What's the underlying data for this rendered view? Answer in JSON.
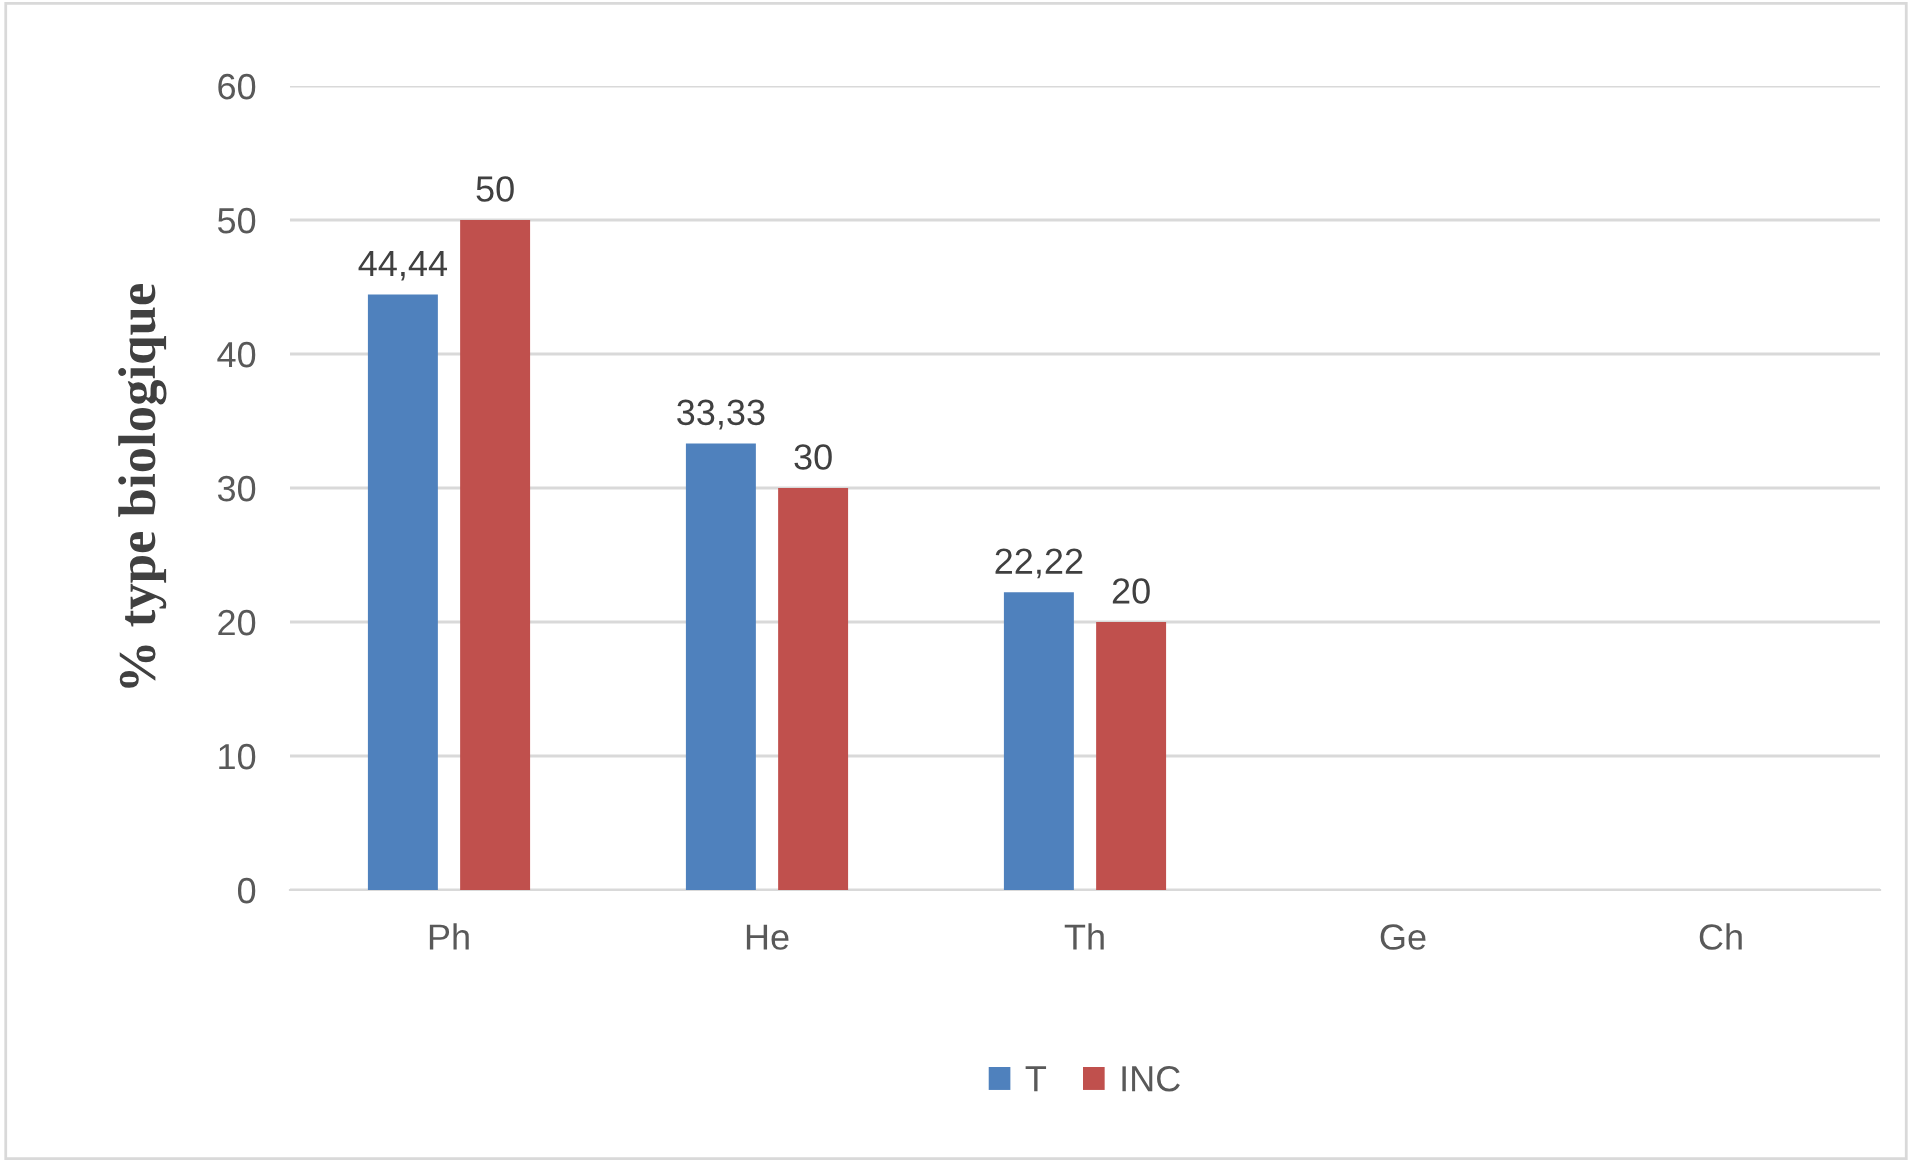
{
  "chart_data": {
    "type": "bar",
    "ylabel": "% type biologique",
    "categories": [
      "Ph",
      "He",
      "Th",
      "Ge",
      "Ch"
    ],
    "series": [
      {
        "name": "T",
        "color": "#4f81bd",
        "values": [
          44.44,
          33.33,
          22.22,
          0,
          0
        ],
        "value_labels": [
          "44,44",
          "33,33",
          "22,22",
          null,
          null
        ]
      },
      {
        "name": "INC",
        "color": "#c0504d",
        "values": [
          50,
          30,
          20,
          0,
          0
        ],
        "value_labels": [
          "50",
          "30",
          "20",
          null,
          null
        ]
      }
    ],
    "ylim": [
      0,
      60
    ],
    "yticks": [
      0,
      10,
      20,
      30,
      40,
      50,
      60
    ],
    "grid": "y",
    "legend": "bottom"
  }
}
